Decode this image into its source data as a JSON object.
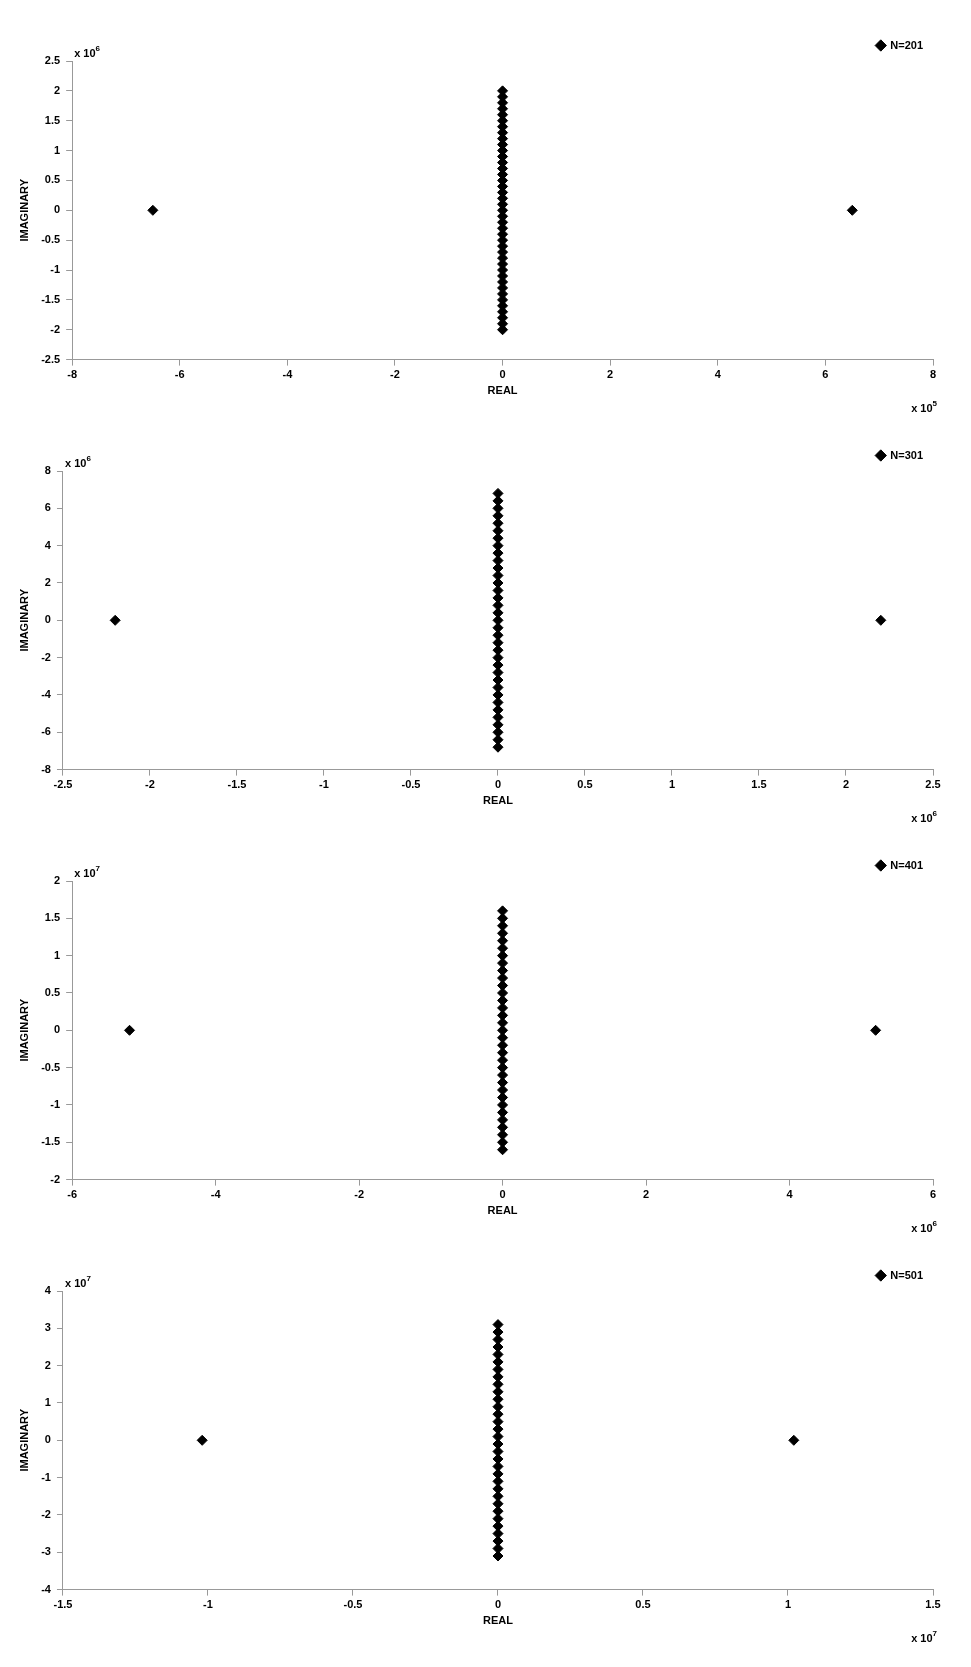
{
  "chart_data": [
    {
      "type": "scatter",
      "xlabel": "REAL",
      "ylabel": "IMAGINARY",
      "annotations": [
        "x 10$^{6}$",
        "x 10$^{5}$"
      ],
      "marker": "diamond",
      "legend": "top right",
      "grid": false,
      "xlim": [
        -8,
        8
      ],
      "xticks": [
        -8,
        -6,
        -4,
        -2,
        0,
        2,
        4,
        6,
        8
      ],
      "ylim": [
        -2.5,
        2.5
      ],
      "yticks": [
        -2.5,
        -2,
        -1.5,
        -1,
        -0.5,
        0,
        0.5,
        1,
        1.5,
        2,
        2.5
      ],
      "series": [
        {
          "name": "N=201",
          "color": "#000000",
          "x": [
            -6.5,
            6.5,
            0,
            0,
            0,
            0,
            0,
            0,
            0,
            0,
            0,
            0,
            0,
            0,
            0,
            0,
            0,
            0,
            0,
            0,
            0,
            0,
            0,
            0,
            0,
            0,
            0,
            0,
            0,
            0,
            0,
            0,
            0,
            0,
            0,
            0,
            0,
            0,
            0,
            0,
            0,
            0,
            0
          ],
          "values": [
            0,
            0,
            -2,
            -1.9,
            -1.8,
            -1.7,
            -1.6,
            -1.5,
            -1.4,
            -1.3,
            -1.2,
            -1.1,
            -1,
            -0.9,
            -0.8,
            -0.7,
            -0.6,
            -0.5,
            -0.4,
            -0.3,
            -0.2,
            -0.1,
            0,
            0.1,
            0.2,
            0.3,
            0.4,
            0.5,
            0.6,
            0.7,
            0.8,
            0.9,
            1,
            1.1,
            1.2,
            1.3,
            1.4,
            1.5,
            1.6,
            1.7,
            1.8,
            1.9,
            2
          ]
        }
      ]
    },
    {
      "type": "scatter",
      "xlabel": "REAL",
      "ylabel": "IMAGINARY",
      "annotations": [
        "x 10$^{6}$",
        "x 10$^{6}$"
      ],
      "marker": "diamond",
      "legend": "top right",
      "grid": false,
      "xlim": [
        -2.5,
        2.5
      ],
      "xticks": [
        -2.5,
        -2,
        -1.5,
        -1,
        -0.5,
        0,
        0.5,
        1,
        1.5,
        2,
        2.5
      ],
      "ylim": [
        -8,
        8
      ],
      "yticks": [
        -8,
        -6,
        -4,
        -2,
        0,
        2,
        4,
        6,
        8
      ],
      "series": [
        {
          "name": "N=301",
          "color": "#000000",
          "x": [
            -2.2,
            2.2,
            0,
            0,
            0,
            0,
            0,
            0,
            0,
            0,
            0,
            0,
            0,
            0,
            0,
            0,
            0,
            0,
            0,
            0,
            0,
            0,
            0,
            0,
            0,
            0,
            0,
            0,
            0,
            0,
            0,
            0,
            0,
            0,
            0,
            0,
            0
          ],
          "values": [
            0,
            0,
            -6.8,
            -6.4,
            -6,
            -5.6,
            -5.2,
            -4.8,
            -4.4,
            -4,
            -3.6,
            -3.2,
            -2.8,
            -2.4,
            -2,
            -1.6,
            -1.2,
            -0.8,
            -0.4,
            0,
            0.4,
            0.8,
            1.2,
            1.6,
            2,
            2.4,
            2.8,
            3.2,
            3.6,
            4,
            4.4,
            4.8,
            5.2,
            5.6,
            6,
            6.4,
            6.8
          ]
        }
      ]
    },
    {
      "type": "scatter",
      "xlabel": "REAL",
      "ylabel": "IMAGINARY",
      "annotations": [
        "x 10$^{7}$",
        "x 10$^{6}$"
      ],
      "marker": "diamond",
      "legend": "top right",
      "grid": false,
      "xlim": [
        -6,
        6
      ],
      "xticks": [
        -6,
        -4,
        -2,
        0,
        2,
        4,
        6
      ],
      "ylim": [
        -2,
        2
      ],
      "yticks": [
        -2,
        -1.5,
        -1,
        -0.5,
        0,
        0.5,
        1,
        1.5,
        2
      ],
      "series": [
        {
          "name": "N=401",
          "color": "#000000",
          "x": [
            -5.2,
            5.2,
            0,
            0,
            0,
            0,
            0,
            0,
            0,
            0,
            0,
            0,
            0,
            0,
            0,
            0,
            0,
            0,
            0,
            0,
            0,
            0,
            0,
            0,
            0,
            0,
            0,
            0,
            0,
            0,
            0,
            0,
            0,
            0,
            0
          ],
          "values": [
            0,
            0,
            -1.6,
            -1.5,
            -1.4,
            -1.3,
            -1.2,
            -1.1,
            -1,
            -0.9,
            -0.8,
            -0.7,
            -0.6,
            -0.5,
            -0.4,
            -0.3,
            -0.2,
            -0.1,
            0,
            0.1,
            0.2,
            0.3,
            0.4,
            0.5,
            0.6,
            0.7,
            0.8,
            0.9,
            1,
            1.1,
            1.2,
            1.3,
            1.4,
            1.5,
            1.6
          ]
        }
      ]
    },
    {
      "type": "scatter",
      "xlabel": "REAL",
      "ylabel": "IMAGINARY",
      "annotations": [
        "x 10$^{7}$",
        "x 10$^{7}$"
      ],
      "marker": "diamond",
      "legend": "top right",
      "grid": false,
      "xlim": [
        -1.5,
        1.5
      ],
      "xticks": [
        -1.5,
        -1,
        -0.5,
        0,
        0.5,
        1,
        1.5
      ],
      "ylim": [
        -4,
        4
      ],
      "yticks": [
        -4,
        -3,
        -2,
        -1,
        0,
        1,
        2,
        3,
        4
      ],
      "series": [
        {
          "name": "N=501",
          "color": "#000000",
          "x": [
            -1.02,
            1.02,
            0,
            0,
            0,
            0,
            0,
            0,
            0,
            0,
            0,
            0,
            0,
            0,
            0,
            0,
            0,
            0,
            0,
            0,
            0,
            0,
            0,
            0,
            0,
            0,
            0,
            0,
            0,
            0,
            0,
            0,
            0,
            0
          ],
          "values": [
            0,
            0,
            -3.1,
            -2.9,
            -2.7,
            -2.5,
            -2.3,
            -2.1,
            -1.9,
            -1.7,
            -1.5,
            -1.3,
            -1.1,
            -0.9,
            -0.7,
            -0.5,
            -0.3,
            -0.1,
            0.1,
            0.3,
            0.5,
            0.7,
            0.9,
            1.1,
            1.3,
            1.5,
            1.7,
            1.9,
            2.1,
            2.3,
            2.5,
            2.7,
            2.9,
            3.1
          ]
        }
      ]
    }
  ]
}
